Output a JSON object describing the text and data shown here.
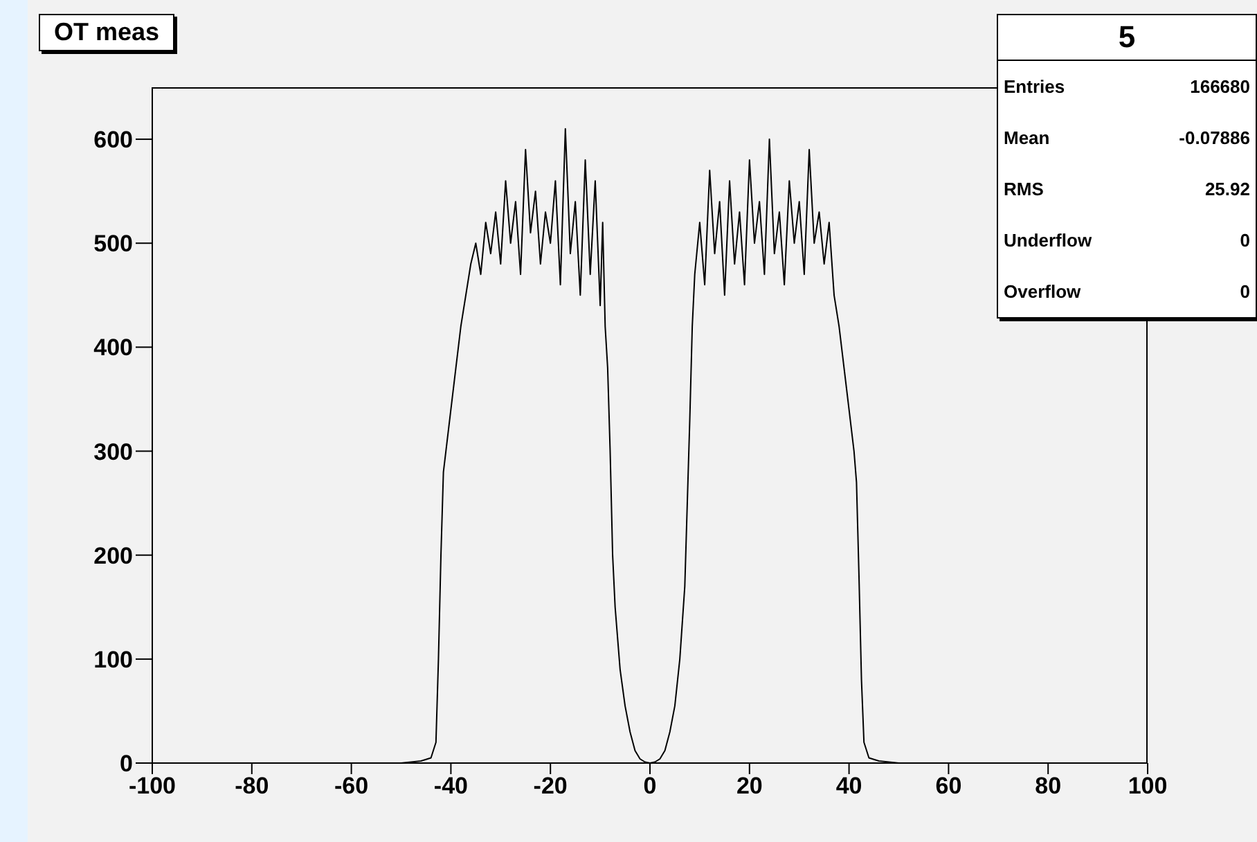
{
  "chart_data": {
    "type": "line",
    "title": "OT meas",
    "legend_title": "5",
    "annotations": [
      "Entries",
      "166680",
      "Mean",
      "-0.07886",
      "RMS",
      "25.92",
      "Underflow",
      "0",
      "Overflow",
      "0"
    ],
    "series": [
      {
        "color": "#000000",
        "x": [
          -100,
          -50,
          -46,
          -44,
          -43,
          -42.5,
          -42,
          -41.5,
          -41,
          -40,
          -39,
          -38,
          -37,
          -36,
          -35,
          -34,
          -33,
          -32,
          -31,
          -30,
          -29,
          -28,
          -27,
          -26,
          -25,
          -24,
          -23,
          -22,
          -21,
          -20,
          -19,
          -18,
          -17,
          -16,
          -15,
          -14,
          -13,
          -12,
          -11,
          -10,
          -9.5,
          -9,
          -8.5,
          -8,
          -7.5,
          -7,
          -6,
          -5,
          -4,
          -3,
          -2,
          -1,
          0,
          1,
          2,
          3,
          4,
          5,
          6,
          7,
          7.5,
          8,
          8.5,
          9,
          10,
          11,
          12,
          13,
          14,
          15,
          16,
          17,
          18,
          19,
          20,
          21,
          22,
          23,
          24,
          25,
          26,
          27,
          28,
          29,
          30,
          31,
          32,
          33,
          34,
          35,
          36,
          37,
          38,
          39,
          40,
          41,
          41.5,
          42,
          42.5,
          43,
          44,
          46,
          50,
          100
        ],
        "values": [
          0,
          0,
          2,
          5,
          20,
          100,
          200,
          280,
          300,
          340,
          380,
          420,
          450,
          480,
          500,
          470,
          520,
          490,
          530,
          480,
          560,
          500,
          540,
          470,
          590,
          510,
          550,
          480,
          530,
          500,
          560,
          460,
          610,
          490,
          540,
          450,
          580,
          470,
          560,
          440,
          520,
          420,
          380,
          300,
          200,
          150,
          90,
          55,
          30,
          12,
          4,
          1,
          0,
          1,
          4,
          12,
          30,
          55,
          100,
          170,
          250,
          330,
          420,
          470,
          520,
          460,
          570,
          490,
          540,
          450,
          560,
          480,
          530,
          460,
          580,
          500,
          540,
          470,
          600,
          490,
          530,
          460,
          560,
          500,
          540,
          470,
          590,
          500,
          530,
          480,
          520,
          450,
          420,
          380,
          340,
          300,
          270,
          180,
          80,
          20,
          5,
          2,
          0,
          0
        ]
      }
    ],
    "xlim": [
      -100,
      100
    ],
    "xticks": [
      -100,
      -80,
      -60,
      -40,
      -20,
      0,
      20,
      40,
      60,
      80,
      100
    ],
    "ylim": [
      0,
      650
    ],
    "yticks": [
      0,
      100,
      200,
      300,
      400,
      500,
      600
    ],
    "grid": false,
    "marker": "none",
    "line_style": "solid"
  }
}
